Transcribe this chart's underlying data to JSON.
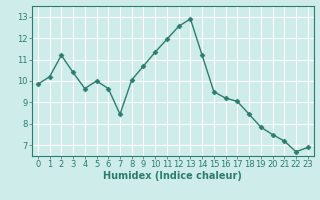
{
  "x": [
    0,
    1,
    2,
    3,
    4,
    5,
    6,
    7,
    8,
    9,
    10,
    11,
    12,
    13,
    14,
    15,
    16,
    17,
    18,
    19,
    20,
    21,
    22,
    23
  ],
  "y": [
    9.85,
    10.2,
    11.2,
    10.4,
    9.65,
    10.0,
    9.65,
    8.45,
    10.05,
    10.7,
    11.35,
    11.95,
    12.55,
    12.9,
    11.2,
    9.5,
    9.2,
    9.05,
    8.45,
    7.85,
    7.5,
    7.2,
    6.7,
    6.9
  ],
  "line_color": "#2d7d6e",
  "marker_color": "#2d7d6e",
  "bg_color": "#ceecea",
  "grid_color": "#ffffff",
  "xlabel": "Humidex (Indice chaleur)",
  "xlim": [
    -0.5,
    23.5
  ],
  "ylim": [
    6.5,
    13.5
  ],
  "yticks": [
    7,
    8,
    9,
    10,
    11,
    12,
    13
  ],
  "xticks": [
    0,
    1,
    2,
    3,
    4,
    5,
    6,
    7,
    8,
    9,
    10,
    11,
    12,
    13,
    14,
    15,
    16,
    17,
    18,
    19,
    20,
    21,
    22,
    23
  ],
  "xlabel_color": "#2d7d6e",
  "tick_color": "#2d7d6e",
  "xlabel_fontsize": 7,
  "tick_fontsize": 6,
  "linewidth": 1.0,
  "markersize": 2.5,
  "spine_color": "#2d7d6e"
}
